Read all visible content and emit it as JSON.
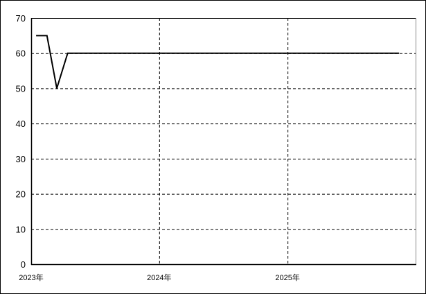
{
  "chart_data": {
    "type": "line",
    "title": "",
    "xlabel": "",
    "ylabel": "",
    "ylim": [
      0,
      70
    ],
    "yticks": [
      "0",
      "10",
      "20",
      "30",
      "40",
      "50",
      "60",
      "70"
    ],
    "xticks": [
      {
        "date": "2023-01-01",
        "label": "2023年"
      },
      {
        "date": "2024-01-01",
        "label": "2024年"
      },
      {
        "date": "2025-01-01",
        "label": "2025年"
      }
    ],
    "xlim": [
      "2023-01-01",
      "2025-12-31"
    ],
    "grid": true,
    "line_color": "#000000",
    "series": [
      {
        "x": [
          "2023-01-15",
          "2023-02-15",
          "2023-03-15",
          "2023-04-15",
          "2023-05-15",
          "2023-06-15",
          "2023-07-15",
          "2023-08-15",
          "2023-09-15",
          "2023-10-15",
          "2023-11-15",
          "2023-12-15",
          "2024-01-15",
          "2024-02-15",
          "2024-03-15",
          "2024-04-15",
          "2024-05-15",
          "2024-06-15",
          "2024-07-15",
          "2024-08-15",
          "2024-09-15",
          "2024-10-15",
          "2024-11-15",
          "2024-12-15",
          "2025-01-15",
          "2025-02-15",
          "2025-03-15",
          "2025-04-15",
          "2025-05-15",
          "2025-06-15",
          "2025-07-15",
          "2025-08-15",
          "2025-09-15",
          "2025-10-15",
          "2025-11-15"
        ],
        "values": [
          65,
          65,
          50,
          60,
          60,
          60,
          60,
          60,
          60,
          60,
          60,
          60,
          60,
          60,
          60,
          60,
          60,
          60,
          60,
          60,
          60,
          60,
          60,
          60,
          60,
          60,
          60,
          60,
          60,
          60,
          60,
          60,
          60,
          60,
          60
        ]
      }
    ]
  }
}
